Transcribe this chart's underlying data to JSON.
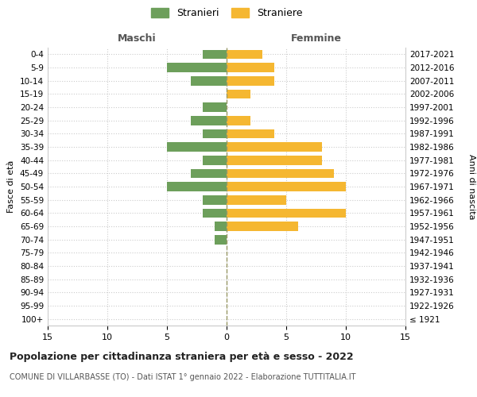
{
  "age_groups": [
    "100+",
    "95-99",
    "90-94",
    "85-89",
    "80-84",
    "75-79",
    "70-74",
    "65-69",
    "60-64",
    "55-59",
    "50-54",
    "45-49",
    "40-44",
    "35-39",
    "30-34",
    "25-29",
    "20-24",
    "15-19",
    "10-14",
    "5-9",
    "0-4"
  ],
  "birth_years": [
    "≤ 1921",
    "1922-1926",
    "1927-1931",
    "1932-1936",
    "1937-1941",
    "1942-1946",
    "1947-1951",
    "1952-1956",
    "1957-1961",
    "1962-1966",
    "1967-1971",
    "1972-1976",
    "1977-1981",
    "1982-1986",
    "1987-1991",
    "1992-1996",
    "1997-2001",
    "2002-2006",
    "2007-2011",
    "2012-2016",
    "2017-2021"
  ],
  "males": [
    0,
    0,
    0,
    0,
    0,
    0,
    1,
    1,
    2,
    2,
    5,
    3,
    2,
    5,
    2,
    3,
    2,
    0,
    3,
    5,
    2
  ],
  "females": [
    0,
    0,
    0,
    0,
    0,
    0,
    0,
    6,
    10,
    5,
    10,
    9,
    8,
    8,
    4,
    2,
    0,
    2,
    4,
    4,
    3
  ],
  "male_color": "#6d9f5b",
  "female_color": "#f5b731",
  "background_color": "#ffffff",
  "grid_color": "#cccccc",
  "center_line_color": "#999966",
  "title": "Popolazione per cittadinanza straniera per età e sesso - 2022",
  "subtitle": "COMUNE DI VILLARBASSE (TO) - Dati ISTAT 1° gennaio 2022 - Elaborazione TUTTITALIA.IT",
  "left_label": "Maschi",
  "right_label": "Femmine",
  "y_label": "Fasce di età",
  "right_y_label": "Anni di nascita",
  "legend_male": "Stranieri",
  "legend_female": "Straniere",
  "xlim": 15
}
